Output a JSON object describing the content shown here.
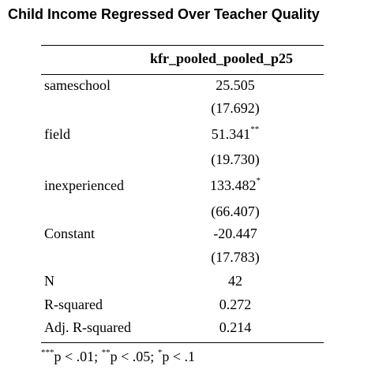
{
  "title": "Child Income Regressed Over Teacher Quality",
  "column_header": "kfr_pooled_pooled_p25",
  "rows": [
    {
      "label": "sameschool",
      "coef": "25.505",
      "stars": "",
      "se": "(17.692)"
    },
    {
      "label": "field",
      "coef": "51.341",
      "stars": "**",
      "se": "(19.730)"
    },
    {
      "label": "inexperienced",
      "coef": "133.482",
      "stars": "*",
      "se": "(66.407)"
    },
    {
      "label": "Constant",
      "coef": "-20.447",
      "stars": "",
      "se": "(17.783)"
    }
  ],
  "stats": [
    {
      "label": "N",
      "value": "42"
    },
    {
      "label": "R-squared",
      "value": "0.272"
    },
    {
      "label": "Adj. R-squared",
      "value": "0.214"
    }
  ],
  "notes": {
    "s1": "***",
    "t1": "p < .01; ",
    "s2": "**",
    "t2": "p < .05; ",
    "s3": "*",
    "t3": "p < .1"
  }
}
